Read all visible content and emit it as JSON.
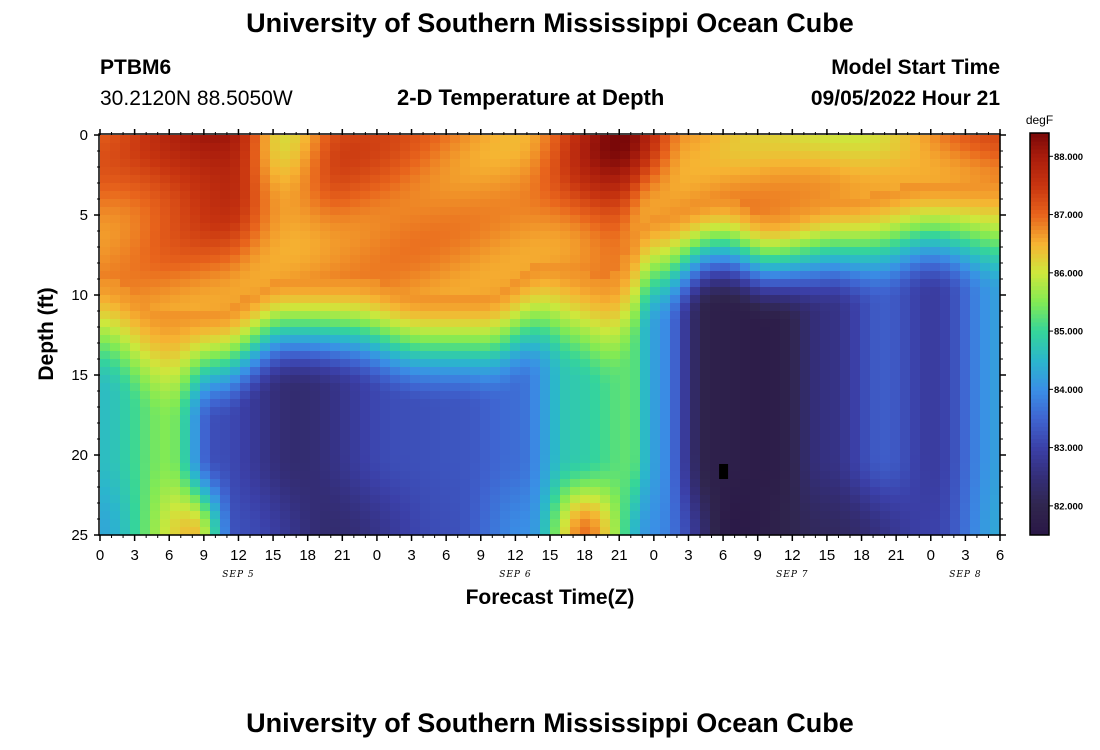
{
  "header": {
    "title": "University of Southern Mississippi Ocean Cube",
    "station": "PTBM6",
    "coords": "30.2120N  88.5050W",
    "plot_title": "2-D Temperature at Depth",
    "model_start_label": "Model Start Time",
    "model_start_value": "09/05/2022 Hour 21"
  },
  "footer": {
    "title": "University of Southern Mississippi Ocean Cube"
  },
  "chart_data": {
    "type": "heatmap",
    "title": "2-D Temperature at Depth",
    "xlabel": "Forecast Time(Z)",
    "ylabel": "Depth (ft)",
    "x_range_hours": [
      0,
      78
    ],
    "y_range_ft": [
      0,
      25
    ],
    "y_ticks": [
      0,
      5,
      10,
      15,
      20,
      25
    ],
    "x_tick_labels": [
      "0",
      "3",
      "6",
      "9",
      "12",
      "15",
      "18",
      "21",
      "0",
      "3",
      "6",
      "9",
      "12",
      "15",
      "18",
      "21",
      "0",
      "3",
      "6",
      "9",
      "12",
      "15",
      "18",
      "21",
      "0",
      "3",
      "6"
    ],
    "date_labels": [
      {
        "text": "SEP 5",
        "hour": 12
      },
      {
        "text": "SEP 6",
        "hour": 36
      },
      {
        "text": "SEP 7",
        "hour": 60
      },
      {
        "text": "SEP 8",
        "hour": 75
      }
    ],
    "colorbar": {
      "unit": "degF",
      "min": 81.5,
      "max": 88.4,
      "ticks": [
        "88.000",
        "87.000",
        "86.000",
        "85.000",
        "84.000",
        "83.000",
        "82.000"
      ],
      "tick_values": [
        88,
        87,
        86,
        85,
        84,
        83,
        82
      ]
    },
    "warm_layer_depth_ft": [
      {
        "hour": 0,
        "depth": 9
      },
      {
        "hour": 6,
        "depth": 11
      },
      {
        "hour": 10,
        "depth": 11
      },
      {
        "hour": 16,
        "depth": 9
      },
      {
        "hour": 22,
        "depth": 9
      },
      {
        "hour": 28,
        "depth": 10
      },
      {
        "hour": 33,
        "depth": 10
      },
      {
        "hour": 39,
        "depth": 8
      },
      {
        "hour": 44,
        "depth": 9
      },
      {
        "hour": 48,
        "depth": 5
      },
      {
        "hour": 54,
        "depth": 4
      },
      {
        "hour": 58,
        "depth": 5
      },
      {
        "hour": 64,
        "depth": 4
      },
      {
        "hour": 72,
        "depth": 3
      },
      {
        "hour": 78,
        "depth": 3
      }
    ],
    "cold_core_temp_f": [
      {
        "hour": 0,
        "temp": 84.6
      },
      {
        "hour": 6,
        "temp": 85.5
      },
      {
        "hour": 10,
        "temp": 83.2
      },
      {
        "hour": 17,
        "temp": 82.4
      },
      {
        "hour": 26,
        "temp": 83.2
      },
      {
        "hour": 31,
        "temp": 83.3
      },
      {
        "hour": 36,
        "temp": 83.6
      },
      {
        "hour": 41,
        "temp": 84.8
      },
      {
        "hour": 46,
        "temp": 85.3
      },
      {
        "hour": 48,
        "temp": 84.2
      },
      {
        "hour": 53,
        "temp": 81.8
      },
      {
        "hour": 58,
        "temp": 81.7
      },
      {
        "hour": 63,
        "temp": 82.6
      },
      {
        "hour": 68,
        "temp": 83.4
      },
      {
        "hour": 72,
        "temp": 82.9
      },
      {
        "hour": 78,
        "temp": 84.2
      }
    ],
    "surface_temp_f": [
      {
        "hour": 0,
        "temp": 87.1
      },
      {
        "hour": 11,
        "temp": 88.1
      },
      {
        "hour": 16,
        "temp": 86.3
      },
      {
        "hour": 21,
        "temp": 87.3
      },
      {
        "hour": 36,
        "temp": 86.6
      },
      {
        "hour": 45,
        "temp": 88.3
      },
      {
        "hour": 51,
        "temp": 86.6
      },
      {
        "hour": 57,
        "temp": 86.4
      },
      {
        "hour": 66,
        "temp": 85.9
      },
      {
        "hour": 78,
        "temp": 87.4
      }
    ],
    "bottom_temp_f": [
      {
        "hour": 0,
        "temp": 84.3
      },
      {
        "hour": 8,
        "temp": 86.4
      },
      {
        "hour": 12,
        "temp": 83.2
      },
      {
        "hour": 20,
        "temp": 82.4
      },
      {
        "hour": 30,
        "temp": 83.2
      },
      {
        "hour": 37,
        "temp": 84.0
      },
      {
        "hour": 42,
        "temp": 86.9
      },
      {
        "hour": 48,
        "temp": 84.0
      },
      {
        "hour": 55,
        "temp": 81.6
      },
      {
        "hour": 63,
        "temp": 82.2
      },
      {
        "hour": 72,
        "temp": 83.0
      },
      {
        "hour": 78,
        "temp": 84.3
      }
    ],
    "colormap": [
      {
        "v": 81.5,
        "c": "#2a1746"
      },
      {
        "v": 82.0,
        "c": "#30264e"
      },
      {
        "v": 82.5,
        "c": "#342e78"
      },
      {
        "v": 83.0,
        "c": "#3b40a8"
      },
      {
        "v": 83.5,
        "c": "#3f64d0"
      },
      {
        "v": 84.0,
        "c": "#3a8fe6"
      },
      {
        "v": 84.5,
        "c": "#2bb6cc"
      },
      {
        "v": 85.0,
        "c": "#35d59a"
      },
      {
        "v": 85.5,
        "c": "#82ea54"
      },
      {
        "v": 86.0,
        "c": "#cde83c"
      },
      {
        "v": 86.5,
        "c": "#f6b332"
      },
      {
        "v": 87.0,
        "c": "#e8641c"
      },
      {
        "v": 87.5,
        "c": "#c83510"
      },
      {
        "v": 88.0,
        "c": "#a81c0c"
      },
      {
        "v": 88.4,
        "c": "#7a0808"
      }
    ],
    "missing_cell": {
      "hour": 54,
      "depth": 21
    }
  }
}
